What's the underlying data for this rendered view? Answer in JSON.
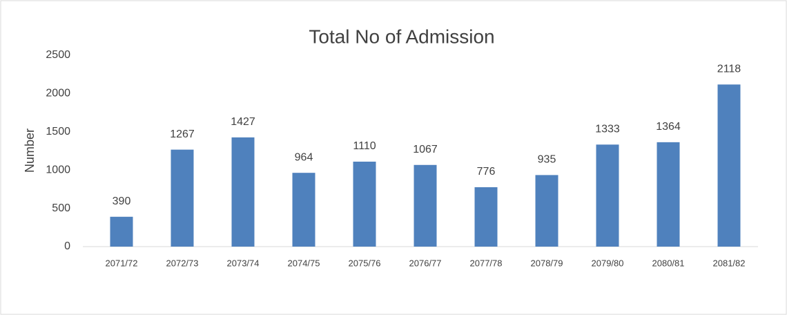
{
  "chart_data": {
    "type": "bar",
    "title": "Total No of Admission",
    "y_label": "Number",
    "categories": [
      "2071/72",
      "2072/73",
      "2073/74",
      "2074/75",
      "2075/76",
      "2076/77",
      "2077/78",
      "2078/79",
      "2079/80",
      "2080/81",
      "2081/82"
    ],
    "values": [
      390,
      1267,
      1427,
      964,
      1110,
      1067,
      776,
      935,
      1333,
      1364,
      2118
    ],
    "color": "#4f81bd",
    "ylim": [
      0,
      2500
    ],
    "yticks": [
      0,
      500,
      1000,
      1500,
      2000,
      2500
    ],
    "grid": false
  }
}
